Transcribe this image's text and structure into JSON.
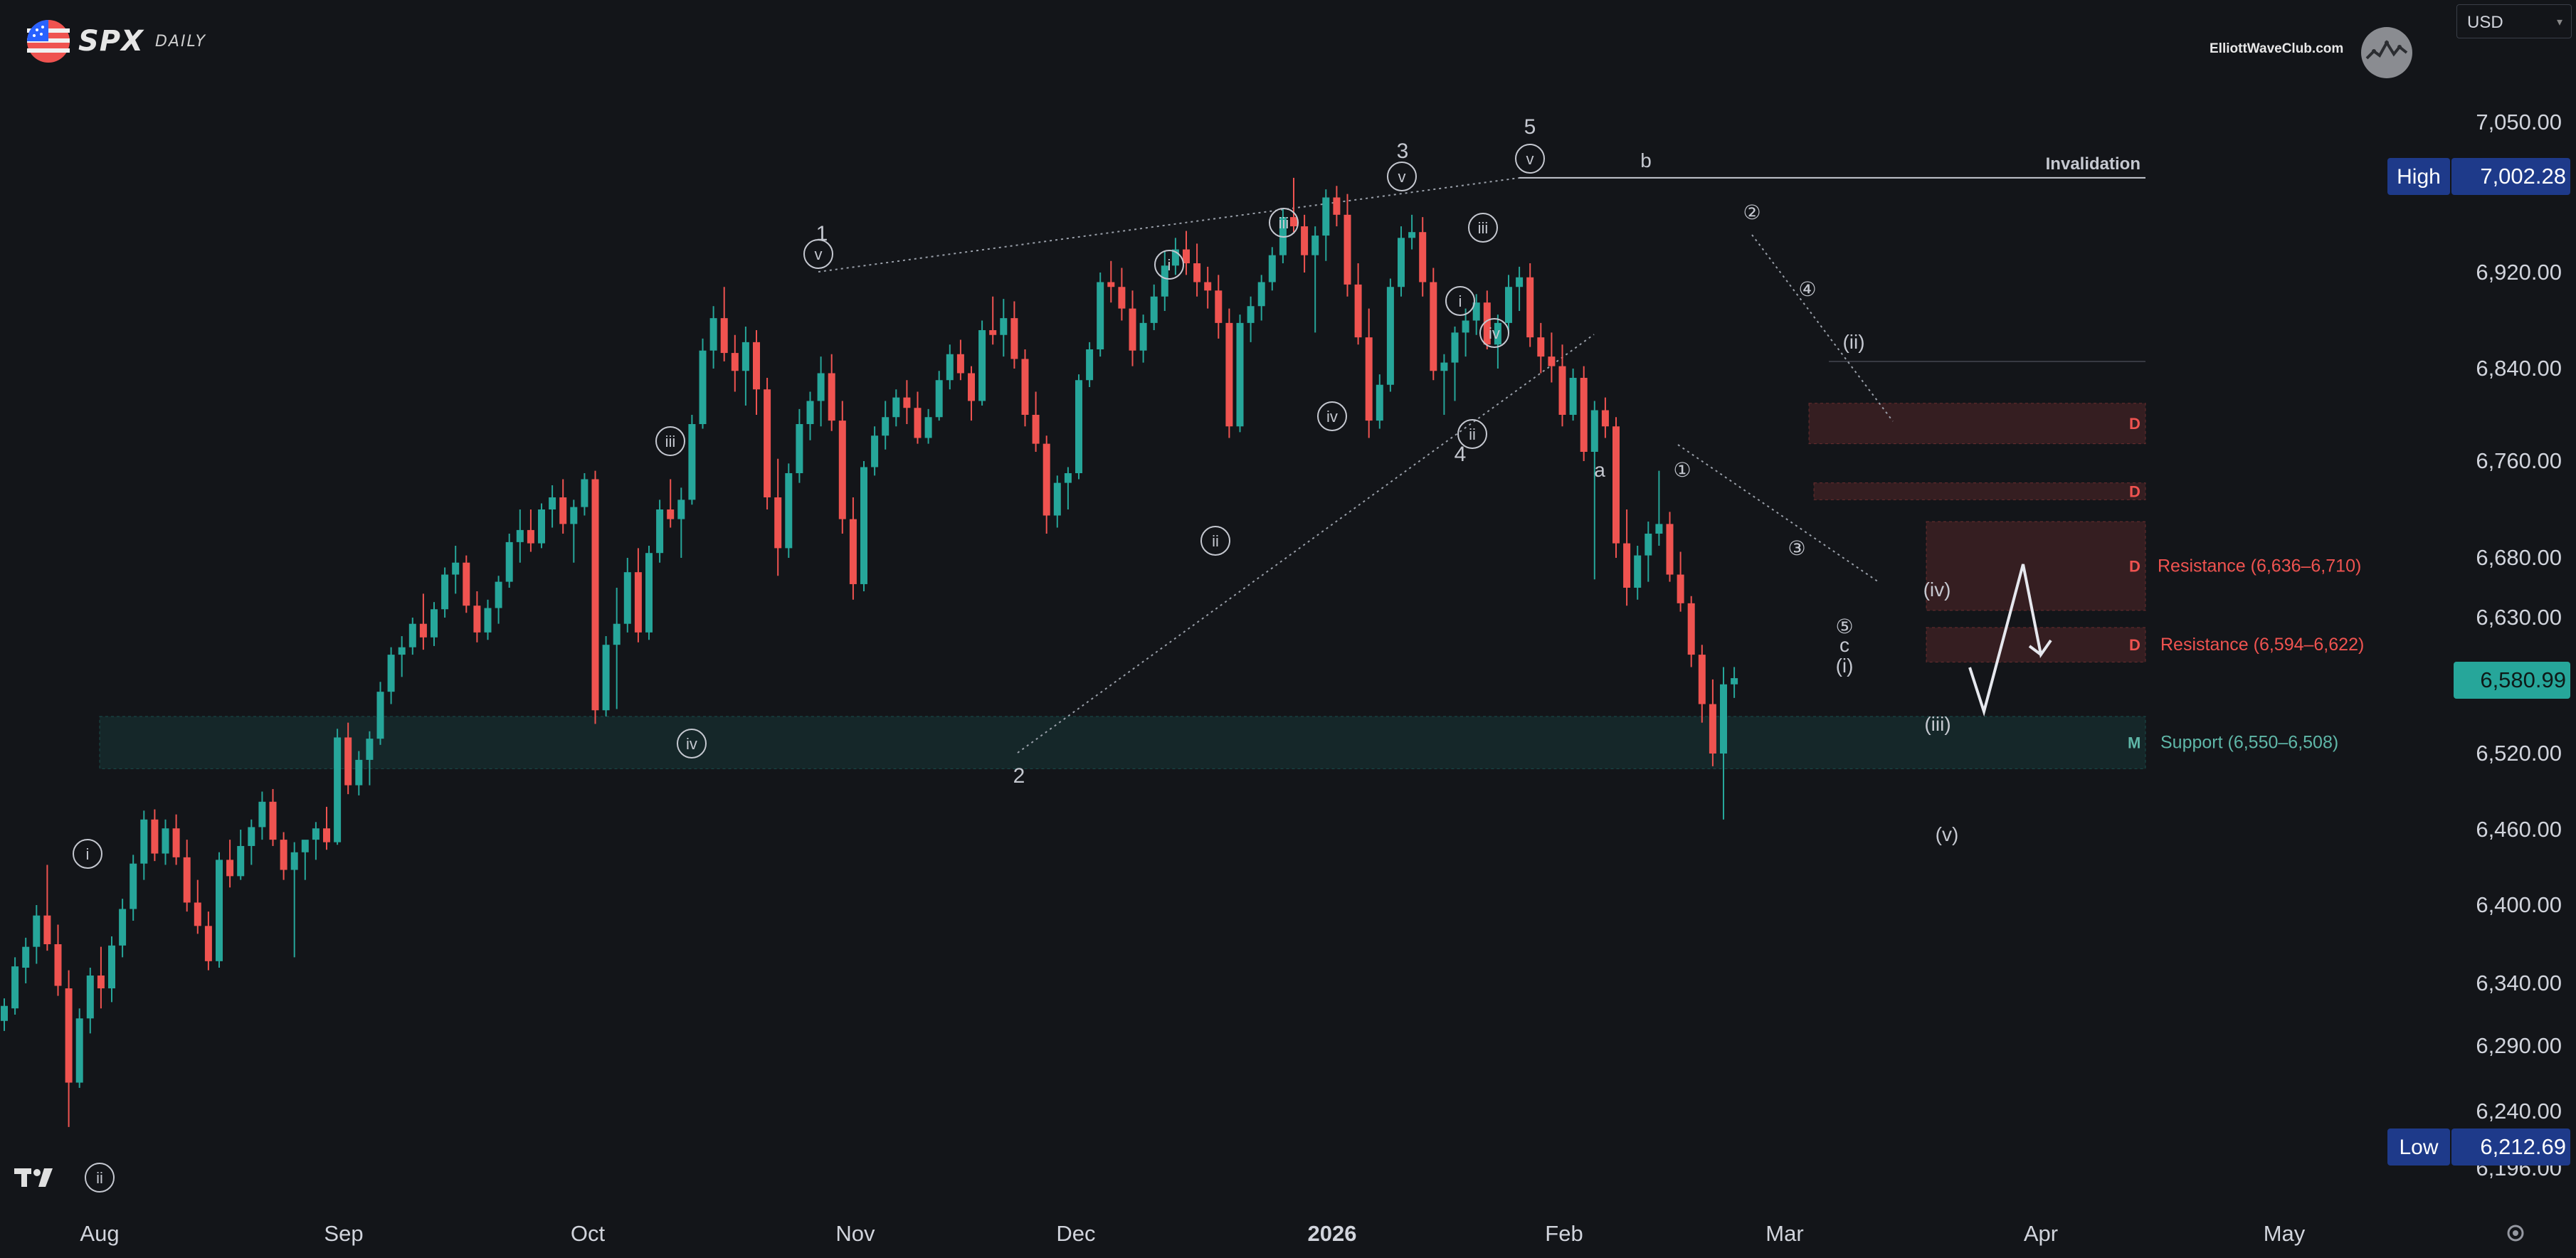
{
  "header": {
    "ticker": "SPX",
    "timeframe": "DAILY",
    "brand": "ElliottWaveClub.com",
    "currency": "USD"
  },
  "icons": {
    "flag": "us-flag-icon",
    "brand": "elliottwave-logo-icon",
    "platform": "tradingview-logo-icon",
    "settings": "gear-icon"
  },
  "colors": {
    "background": "#131519",
    "bull": "#26a69a",
    "bear": "#ef5350",
    "support_zone": "#26a69a",
    "resistance_zone": "#ef5350",
    "high_label": "#1e3a8a",
    "low_label": "#1e3a8a",
    "last_price_label": "#26a69a"
  },
  "chart_data": {
    "type": "candlestick",
    "x_axis": {
      "ticks": [
        "Aug",
        "Sep",
        "Oct",
        "Nov",
        "Dec",
        "2026",
        "Feb",
        "Mar",
        "Apr",
        "May"
      ],
      "range": [
        "2025-07-25",
        "2026-06-01"
      ]
    },
    "y_axis": {
      "ticks": [
        7050.0,
        6920.0,
        6840.0,
        6760.0,
        6680.0,
        6630.0,
        6520.0,
        6460.0,
        6400.0,
        6340.0,
        6290.0,
        6240.0,
        6196.0
      ],
      "tick_labels": [
        "7,050.00",
        "6,920.00",
        "6,840.00",
        "6,760.00",
        "6,680.00",
        "6,630.00",
        "6,520.00",
        "6,460.00",
        "6,400.00",
        "6,340.00",
        "6,290.00",
        "6,240.00",
        "6,196.00"
      ],
      "position": "right"
    },
    "price_labels": {
      "high": {
        "label": "High",
        "value": "7,002.28"
      },
      "low": {
        "label": "Low",
        "value": "6,212.69"
      },
      "last": {
        "value": "6,580.99"
      }
    },
    "candles": [
      [
        6310,
        6328,
        6302,
        6322
      ],
      [
        6320,
        6360,
        6315,
        6353
      ],
      [
        6352,
        6375,
        6340,
        6368
      ],
      [
        6368,
        6400,
        6355,
        6392
      ],
      [
        6392,
        6432,
        6365,
        6370
      ],
      [
        6370,
        6385,
        6330,
        6338
      ],
      [
        6336,
        6350,
        6228,
        6262
      ],
      [
        6262,
        6320,
        6258,
        6312
      ],
      [
        6312,
        6352,
        6300,
        6346
      ],
      [
        6346,
        6368,
        6320,
        6336
      ],
      [
        6336,
        6376,
        6325,
        6369
      ],
      [
        6369,
        6405,
        6360,
        6397
      ],
      [
        6397,
        6440,
        6388,
        6433
      ],
      [
        6433,
        6475,
        6420,
        6468
      ],
      [
        6468,
        6476,
        6435,
        6441
      ],
      [
        6441,
        6468,
        6432,
        6461
      ],
      [
        6461,
        6472,
        6432,
        6438
      ],
      [
        6438,
        6452,
        6395,
        6402
      ],
      [
        6402,
        6420,
        6378,
        6384
      ],
      [
        6384,
        6395,
        6350,
        6357
      ],
      [
        6357,
        6442,
        6352,
        6436
      ],
      [
        6436,
        6452,
        6414,
        6423
      ],
      [
        6423,
        6460,
        6420,
        6447
      ],
      [
        6447,
        6468,
        6432,
        6462
      ],
      [
        6462,
        6490,
        6452,
        6482
      ],
      [
        6482,
        6492,
        6447,
        6452
      ],
      [
        6452,
        6458,
        6420,
        6428
      ],
      [
        6428,
        6450,
        6360,
        6442
      ],
      [
        6442,
        6450,
        6420,
        6452
      ],
      [
        6452,
        6466,
        6436,
        6461
      ],
      [
        6461,
        6478,
        6444,
        6450
      ],
      [
        6450,
        6540,
        6448,
        6533
      ],
      [
        6533,
        6545,
        6488,
        6495
      ],
      [
        6495,
        6522,
        6487,
        6515
      ],
      [
        6515,
        6538,
        6495,
        6532
      ],
      [
        6532,
        6578,
        6527,
        6570
      ],
      [
        6570,
        6606,
        6560,
        6600
      ],
      [
        6600,
        6615,
        6582,
        6606
      ],
      [
        6606,
        6630,
        6600,
        6625
      ],
      [
        6625,
        6650,
        6604,
        6614
      ],
      [
        6614,
        6643,
        6607,
        6637
      ],
      [
        6637,
        6672,
        6630,
        6666
      ],
      [
        6666,
        6690,
        6650,
        6676
      ],
      [
        6676,
        6682,
        6634,
        6640
      ],
      [
        6640,
        6652,
        6610,
        6618
      ],
      [
        6618,
        6645,
        6612,
        6638
      ],
      [
        6638,
        6665,
        6625,
        6660
      ],
      [
        6660,
        6700,
        6655,
        6693
      ],
      [
        6693,
        6720,
        6676,
        6703
      ],
      [
        6703,
        6720,
        6685,
        6692
      ],
      [
        6692,
        6725,
        6688,
        6720
      ],
      [
        6720,
        6740,
        6705,
        6730
      ],
      [
        6730,
        6745,
        6700,
        6708
      ],
      [
        6708,
        6728,
        6676,
        6722
      ],
      [
        6722,
        6750,
        6715,
        6745
      ],
      [
        6745,
        6752,
        6544,
        6555
      ],
      [
        6555,
        6615,
        6550,
        6608
      ],
      [
        6608,
        6655,
        6556,
        6625
      ],
      [
        6625,
        6680,
        6618,
        6668
      ],
      [
        6668,
        6688,
        6610,
        6618
      ],
      [
        6618,
        6690,
        6612,
        6684
      ],
      [
        6684,
        6728,
        6676,
        6720
      ],
      [
        6720,
        6745,
        6705,
        6712
      ],
      [
        6712,
        6738,
        6680,
        6728
      ],
      [
        6728,
        6800,
        6724,
        6792
      ],
      [
        6792,
        6865,
        6788,
        6855
      ],
      [
        6855,
        6892,
        6840,
        6882
      ],
      [
        6882,
        6908,
        6846,
        6853
      ],
      [
        6853,
        6868,
        6820,
        6838
      ],
      [
        6838,
        6875,
        6808,
        6862
      ],
      [
        6862,
        6872,
        6800,
        6822
      ],
      [
        6822,
        6832,
        6720,
        6730
      ],
      [
        6730,
        6762,
        6665,
        6688
      ],
      [
        6688,
        6758,
        6680,
        6750
      ],
      [
        6750,
        6805,
        6742,
        6792
      ],
      [
        6792,
        6820,
        6778,
        6812
      ],
      [
        6812,
        6850,
        6790,
        6836
      ],
      [
        6836,
        6852,
        6786,
        6795
      ],
      [
        6795,
        6812,
        6700,
        6712
      ],
      [
        6712,
        6730,
        6645,
        6658
      ],
      [
        6658,
        6760,
        6652,
        6755
      ],
      [
        6755,
        6790,
        6748,
        6782
      ],
      [
        6782,
        6812,
        6770,
        6798
      ],
      [
        6798,
        6822,
        6790,
        6815
      ],
      [
        6815,
        6830,
        6792,
        6806
      ],
      [
        6806,
        6820,
        6775,
        6780
      ],
      [
        6780,
        6805,
        6775,
        6798
      ],
      [
        6798,
        6838,
        6795,
        6830
      ],
      [
        6830,
        6860,
        6822,
        6852
      ],
      [
        6852,
        6864,
        6830,
        6836
      ],
      [
        6836,
        6842,
        6795,
        6812
      ],
      [
        6812,
        6880,
        6808,
        6872
      ],
      [
        6872,
        6900,
        6860,
        6868
      ],
      [
        6868,
        6898,
        6850,
        6882
      ],
      [
        6882,
        6896,
        6840,
        6848
      ],
      [
        6848,
        6856,
        6790,
        6800
      ],
      [
        6800,
        6820,
        6768,
        6775
      ],
      [
        6775,
        6782,
        6700,
        6715
      ],
      [
        6715,
        6748,
        6705,
        6742
      ],
      [
        6742,
        6755,
        6720,
        6750
      ],
      [
        6750,
        6835,
        6745,
        6830
      ],
      [
        6830,
        6862,
        6824,
        6856
      ],
      [
        6856,
        6920,
        6850,
        6912
      ],
      [
        6912,
        6930,
        6895,
        6908
      ],
      [
        6908,
        6924,
        6880,
        6890
      ],
      [
        6890,
        6905,
        6842,
        6855
      ],
      [
        6855,
        6885,
        6845,
        6878
      ],
      [
        6878,
        6910,
        6872,
        6900
      ],
      [
        6900,
        6938,
        6888,
        6926
      ],
      [
        6926,
        6950,
        6918,
        6940
      ],
      [
        6940,
        6956,
        6918,
        6928
      ],
      [
        6928,
        6945,
        6900,
        6912
      ],
      [
        6912,
        6925,
        6890,
        6905
      ],
      [
        6905,
        6918,
        6865,
        6878
      ],
      [
        6878,
        6890,
        6780,
        6790
      ],
      [
        6790,
        6885,
        6785,
        6878
      ],
      [
        6878,
        6900,
        6862,
        6892
      ],
      [
        6892,
        6918,
        6880,
        6912
      ],
      [
        6912,
        6942,
        6905,
        6935
      ],
      [
        6935,
        6975,
        6928,
        6968
      ],
      [
        6968,
        7002,
        6955,
        6960
      ],
      [
        6960,
        6970,
        6920,
        6935
      ],
      [
        6935,
        6960,
        6870,
        6952
      ],
      [
        6952,
        6992,
        6930,
        6985
      ],
      [
        6985,
        6995,
        6960,
        6970
      ],
      [
        6970,
        6988,
        6900,
        6910
      ],
      [
        6910,
        6928,
        6860,
        6866
      ],
      [
        6866,
        6890,
        6780,
        6795
      ],
      [
        6795,
        6835,
        6788,
        6826
      ],
      [
        6826,
        6915,
        6820,
        6908
      ],
      [
        6908,
        6960,
        6900,
        6950
      ],
      [
        6950,
        6970,
        6940,
        6955
      ],
      [
        6955,
        6968,
        6900,
        6912
      ],
      [
        6912,
        6924,
        6830,
        6838
      ],
      [
        6838,
        6852,
        6800,
        6845
      ],
      [
        6845,
        6875,
        6812,
        6870
      ],
      [
        6870,
        6890,
        6850,
        6880
      ],
      [
        6880,
        6902,
        6868,
        6895
      ],
      [
        6895,
        6905,
        6856,
        6860
      ],
      [
        6860,
        6885,
        6840,
        6878
      ],
      [
        6878,
        6918,
        6870,
        6908
      ],
      [
        6908,
        6925,
        6888,
        6916
      ],
      [
        6916,
        6928,
        6858,
        6866
      ],
      [
        6866,
        6878,
        6836,
        6850
      ],
      [
        6850,
        6870,
        6828,
        6842
      ],
      [
        6842,
        6860,
        6790,
        6800
      ],
      [
        6800,
        6840,
        6795,
        6832
      ],
      [
        6832,
        6842,
        6760,
        6768
      ],
      [
        6768,
        6812,
        6662,
        6804
      ],
      [
        6804,
        6815,
        6780,
        6790
      ],
      [
        6790,
        6798,
        6680,
        6692
      ],
      [
        6692,
        6720,
        6640,
        6655
      ],
      [
        6655,
        6690,
        6645,
        6682
      ],
      [
        6682,
        6710,
        6660,
        6700
      ],
      [
        6700,
        6752,
        6690,
        6708
      ],
      [
        6708,
        6718,
        6660,
        6666
      ],
      [
        6666,
        6685,
        6635,
        6642
      ],
      [
        6642,
        6648,
        6590,
        6600
      ],
      [
        6600,
        6608,
        6545,
        6560
      ],
      [
        6560,
        6580,
        6510,
        6520
      ],
      [
        6520,
        6590,
        6468,
        6576
      ],
      [
        6576,
        6590,
        6565,
        6581
      ]
    ],
    "zones": [
      {
        "type": "support",
        "label": "Support (6,550–6,508)",
        "tag": "M",
        "from": 6508,
        "to": 6550
      },
      {
        "type": "resistance",
        "label": "Resistance (6,594–6,622)",
        "tag": "D",
        "from": 6594,
        "to": 6622
      },
      {
        "type": "resistance",
        "label": "Resistance (6,636–6,710)",
        "tag": "D",
        "from": 6636,
        "to": 6710
      },
      {
        "type": "resistance",
        "label": "",
        "tag": "D",
        "from": 6728,
        "to": 6742
      },
      {
        "type": "resistance",
        "label": "",
        "tag": "D",
        "from": 6775,
        "to": 6810
      }
    ],
    "lines": [
      {
        "label": "Invalidation",
        "value": 7002
      }
    ],
    "wave_labels": {
      "primary": [
        "1",
        "2",
        "3",
        "4",
        "5"
      ],
      "corrective": [
        "a",
        "b",
        "c"
      ],
      "roman_circled": [
        "i",
        "ii",
        "iii",
        "iv",
        "v"
      ],
      "paren": [
        "(i)",
        "(ii)",
        "(iii)",
        "(iv)",
        "(v)"
      ],
      "circled_numbers": [
        "①",
        "②",
        "③",
        "④",
        "⑤"
      ]
    },
    "legend": "none",
    "grid": false
  }
}
